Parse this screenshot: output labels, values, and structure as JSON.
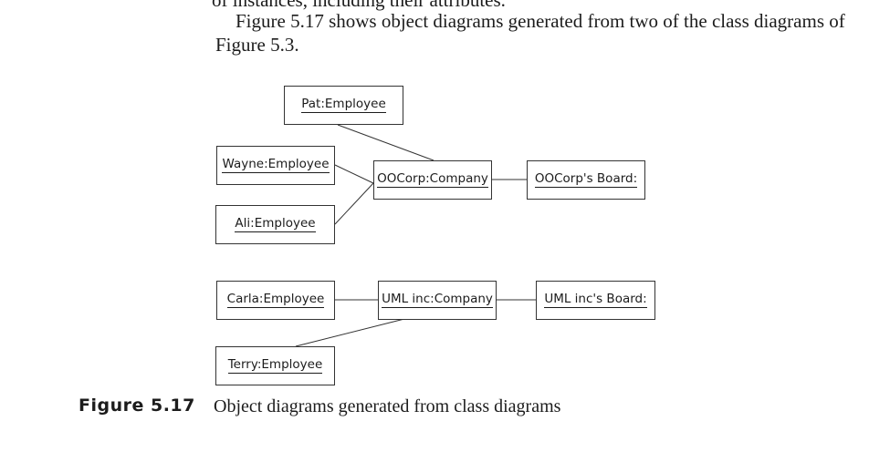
{
  "top_fragment": "of instances, including their attributes.",
  "paragraph": "Figure 5.17 shows object diagrams generated from two of the class diagrams of Figure 5.3.",
  "diagram": {
    "objects": {
      "pat": "Pat:Employee",
      "wayne": "Wayne:Employee",
      "ali": "Ali:Employee",
      "oocorp": "OOCorp:Company",
      "oocorp_board": "OOCorp's Board:",
      "carla": "Carla:Employee",
      "umlinc": "UML inc:Company",
      "umlinc_board": "UML inc's Board:",
      "terry": "Terry:Employee"
    }
  },
  "figure": {
    "label": "Figure 5.17",
    "caption": "Object diagrams generated from class diagrams"
  }
}
